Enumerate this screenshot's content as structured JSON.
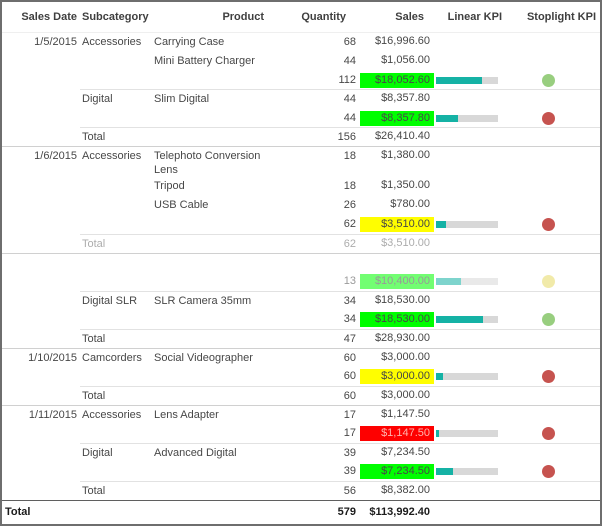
{
  "colors": {
    "kpi_bar_fill": "#15b2a5",
    "kpi_bar_track": "#d8d8d8",
    "cell_green": "#00fe00",
    "cell_yellow": "#fffe00",
    "cell_red": "#fe0000",
    "red_cell_text": "#ffb3ad",
    "dot_green": "#98ce7f",
    "dot_red": "#c6534f",
    "dot_yellow": "#e6da64",
    "body_text": "#474747"
  },
  "chart_data": {
    "type": "table",
    "title": "",
    "columns": [
      "Sales Date",
      "Subcategory",
      "Product",
      "Quantity",
      "Sales",
      "Linear KPI",
      "Stoplight KPI"
    ],
    "legend_note": "Linear KPI = teal progress bar (percent of goal); Stoplight KPI = colored status dot; Sales cell background green/yellow/red = KPI status",
    "rows": [
      {
        "type": "detail",
        "date": "1/5/2015",
        "subcategory": "Accessories",
        "product": "Carrying Case",
        "quantity": "68",
        "sales": "$16,996.60",
        "bg": null,
        "bar": null,
        "dot": null,
        "border": null,
        "fade": null
      },
      {
        "type": "detail",
        "date": "",
        "subcategory": "",
        "product": "Mini Battery Charger",
        "quantity": "44",
        "sales": "$1,056.00",
        "bg": null,
        "bar": null,
        "dot": null,
        "border": null,
        "fade": null
      },
      {
        "type": "subtotal",
        "date": "",
        "subcategory": "",
        "product": "",
        "quantity": "112",
        "sales": "$18,052.60",
        "bg": "green",
        "bar": 74,
        "dot": "green",
        "border": null,
        "fade": null
      },
      {
        "type": "detail",
        "date": "",
        "subcategory": "Digital",
        "product": "Slim Digital",
        "quantity": "44",
        "sales": "$8,357.80",
        "bg": null,
        "bar": null,
        "dot": null,
        "border": "sub",
        "fade": null
      },
      {
        "type": "subtotal",
        "date": "",
        "subcategory": "",
        "product": "",
        "quantity": "44",
        "sales": "$8,357.80",
        "bg": "green",
        "bar": 35,
        "dot": "red",
        "border": null,
        "fade": null
      },
      {
        "type": "total",
        "date": "",
        "subcategory": "Total",
        "product": "",
        "quantity": "156",
        "sales": "$26,410.40",
        "bg": null,
        "bar": null,
        "dot": null,
        "border": "sub",
        "fade": null
      },
      {
        "type": "detail",
        "date": "1/6/2015",
        "subcategory": "Accessories",
        "product": "Telephoto Conversion Lens",
        "quantity": "18",
        "sales": "$1,380.00",
        "bg": null,
        "bar": null,
        "dot": null,
        "border": "group",
        "fade": null
      },
      {
        "type": "detail",
        "date": "",
        "subcategory": "",
        "product": "Tripod",
        "quantity": "18",
        "sales": "$1,350.00",
        "bg": null,
        "bar": null,
        "dot": null,
        "border": null,
        "fade": null
      },
      {
        "type": "detail",
        "date": "",
        "subcategory": "",
        "product": "USB Cable",
        "quantity": "26",
        "sales": "$780.00",
        "bg": null,
        "bar": null,
        "dot": null,
        "border": null,
        "fade": null
      },
      {
        "type": "subtotal",
        "date": "",
        "subcategory": "",
        "product": "",
        "quantity": "62",
        "sales": "$3,510.00",
        "bg": "yellow",
        "bar": 16,
        "dot": "red",
        "border": null,
        "fade": null
      },
      {
        "type": "total",
        "date": "",
        "subcategory": "Total",
        "product": "",
        "quantity": "62",
        "sales": "$3,510.00",
        "bg": null,
        "bar": null,
        "dot": null,
        "border": "sub",
        "fade": 0.45
      },
      {
        "type": "detail",
        "date": "",
        "subcategory": "",
        "product": "",
        "quantity": "",
        "sales": "",
        "bg": null,
        "bar": null,
        "dot": null,
        "border": "group",
        "fade": 0.3
      },
      {
        "type": "subtotal",
        "date": "",
        "subcategory": "",
        "product": "",
        "quantity": "13",
        "sales": "$10,400.00",
        "bg": "green",
        "bar": 40,
        "dot": "yellow",
        "border": null,
        "fade": 0.55
      },
      {
        "type": "detail",
        "date": "",
        "subcategory": "Digital SLR",
        "product": "SLR Camera 35mm",
        "quantity": "34",
        "sales": "$18,530.00",
        "bg": null,
        "bar": null,
        "dot": null,
        "border": "sub",
        "fade": null
      },
      {
        "type": "subtotal",
        "date": "",
        "subcategory": "",
        "product": "",
        "quantity": "34",
        "sales": "$18,530.00",
        "bg": "green",
        "bar": 75,
        "dot": "green",
        "border": null,
        "fade": null
      },
      {
        "type": "total",
        "date": "",
        "subcategory": "Total",
        "product": "",
        "quantity": "47",
        "sales": "$28,930.00",
        "bg": null,
        "bar": null,
        "dot": null,
        "border": "sub",
        "fade": null
      },
      {
        "type": "detail",
        "date": "1/10/2015",
        "subcategory": "Camcorders",
        "product": "Social Videographer",
        "quantity": "60",
        "sales": "$3,000.00",
        "bg": null,
        "bar": null,
        "dot": null,
        "border": "group",
        "fade": null
      },
      {
        "type": "subtotal",
        "date": "",
        "subcategory": "",
        "product": "",
        "quantity": "60",
        "sales": "$3,000.00",
        "bg": "yellow",
        "bar": 12,
        "dot": "red",
        "border": null,
        "fade": null
      },
      {
        "type": "total",
        "date": "",
        "subcategory": "Total",
        "product": "",
        "quantity": "60",
        "sales": "$3,000.00",
        "bg": null,
        "bar": null,
        "dot": null,
        "border": "sub",
        "fade": null
      },
      {
        "type": "detail",
        "date": "1/11/2015",
        "subcategory": "Accessories",
        "product": "Lens Adapter",
        "quantity": "17",
        "sales": "$1,147.50",
        "bg": null,
        "bar": null,
        "dot": null,
        "border": "group",
        "fade": null
      },
      {
        "type": "subtotal",
        "date": "",
        "subcategory": "",
        "product": "",
        "quantity": "17",
        "sales": "$1,147.50",
        "bg": "red",
        "bar": 5,
        "dot": "red",
        "border": null,
        "fade": null
      },
      {
        "type": "detail",
        "date": "",
        "subcategory": "Digital",
        "product": "Advanced Digital",
        "quantity": "39",
        "sales": "$7,234.50",
        "bg": null,
        "bar": null,
        "dot": null,
        "border": "sub",
        "fade": null
      },
      {
        "type": "subtotal",
        "date": "",
        "subcategory": "",
        "product": "",
        "quantity": "39",
        "sales": "$7,234.50",
        "bg": "green",
        "bar": 28,
        "dot": "red",
        "border": null,
        "fade": null
      },
      {
        "type": "total",
        "date": "",
        "subcategory": "Total",
        "product": "",
        "quantity": "56",
        "sales": "$8,382.00",
        "bg": null,
        "bar": null,
        "dot": null,
        "border": "sub",
        "fade": null
      },
      {
        "type": "grand",
        "date": "Total",
        "subcategory": "",
        "product": "",
        "quantity": "579",
        "sales": "$113,992.40",
        "bg": null,
        "bar": null,
        "dot": null,
        "border": "grand",
        "fade": null
      }
    ]
  }
}
